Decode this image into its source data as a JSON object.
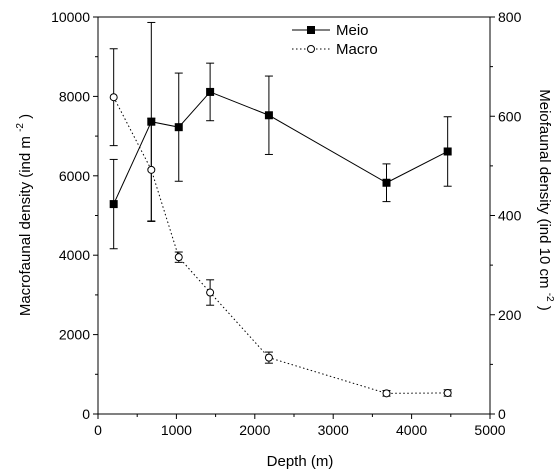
{
  "chart_data": {
    "type": "line",
    "xlabel": "Depth (m)",
    "ylabel_left": "Macrofaunal density (ind m",
    "ylabel_left_sup": "-2",
    "ylabel_left_end": ")",
    "ylabel_right": "Meiofaunal density (ind 10 cm",
    "ylabel_right_sup": "-2",
    "ylabel_right_end": ")",
    "xlim": [
      0,
      5000
    ],
    "ylim_left": [
      0,
      10000
    ],
    "ylim_right": [
      0,
      800
    ],
    "x_ticks": [
      "0",
      "1000",
      "2000",
      "3000",
      "4000",
      "5000"
    ],
    "y_left_ticks": [
      "0",
      "2000",
      "4000",
      "6000",
      "8000",
      "10000"
    ],
    "y_right_ticks": [
      "0",
      "200",
      "400",
      "600",
      "800"
    ],
    "legend_position": "top-center",
    "series": [
      {
        "name": "Meio",
        "axis": "right",
        "marker": "filled-square",
        "line": "solid",
        "color": "#000000",
        "points": [
          {
            "x": 200,
            "y": 423,
            "err": 90
          },
          {
            "x": 680,
            "y": 589,
            "err": 200
          },
          {
            "x": 1030,
            "y": 578,
            "err": 109
          },
          {
            "x": 1430,
            "y": 649,
            "err": 58
          },
          {
            "x": 2180,
            "y": 602,
            "err": 79
          },
          {
            "x": 3680,
            "y": 466,
            "err": 38
          },
          {
            "x": 4460,
            "y": 529,
            "err": 70
          }
        ]
      },
      {
        "name": "Macro",
        "axis": "left",
        "marker": "open-circle",
        "line": "dotted",
        "color": "#000000",
        "points": [
          {
            "x": 200,
            "y": 7980,
            "err": 1220
          },
          {
            "x": 680,
            "y": 6150,
            "err": 1300
          },
          {
            "x": 1030,
            "y": 3950,
            "err": 130
          },
          {
            "x": 1430,
            "y": 3060,
            "err": 320
          },
          {
            "x": 2180,
            "y": 1420,
            "err": 140
          },
          {
            "x": 3680,
            "y": 520,
            "err": 70
          },
          {
            "x": 4460,
            "y": 530,
            "err": 80
          }
        ]
      }
    ]
  }
}
